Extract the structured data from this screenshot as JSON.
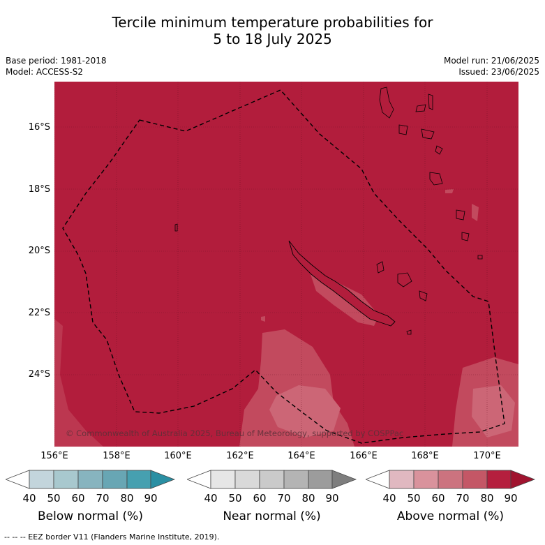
{
  "title_line1": "Tercile minimum temperature probabilities for",
  "title_line2": "5 to 18 July 2025",
  "base_period": "Base period: 1981-2018",
  "model": "Model: ACCESS-S2",
  "model_run": "Model run: 21/06/2025",
  "issued": "Issued: 23/06/2025",
  "copyright": "© Commonwealth of Australia 2025, Bureau of Meteorology, supported by COSPPac",
  "lat_labels": [
    "16°S",
    "18°S",
    "20°S",
    "22°S",
    "24°S"
  ],
  "lon_labels": [
    "156°E",
    "158°E",
    "160°E",
    "162°E",
    "164°E",
    "166°E",
    "168°E",
    "170°E"
  ],
  "legends": {
    "below": {
      "label": "Below normal (%)",
      "ticks": [
        "40",
        "50",
        "60",
        "70",
        "80",
        "90"
      ],
      "colors": [
        "#ffffff",
        "#c3d5dc",
        "#a8c8ce",
        "#87b4bf",
        "#68a6b4",
        "#46a0b0",
        "#2a8fa3"
      ]
    },
    "near": {
      "label": "Near normal (%)",
      "ticks": [
        "40",
        "50",
        "60",
        "70",
        "80",
        "90"
      ],
      "colors": [
        "#ffffff",
        "#e6e6e6",
        "#d9d9d9",
        "#cacaca",
        "#b4b4b4",
        "#9c9c9c",
        "#7e7e7e"
      ]
    },
    "above": {
      "label": "Above normal (%)",
      "ticks": [
        "40",
        "50",
        "60",
        "70",
        "80",
        "90"
      ],
      "colors": [
        "#ffffff",
        "#e0b8c0",
        "#d9929c",
        "#cc737f",
        "#c45766",
        "#b51f3e",
        "#a0142f"
      ]
    }
  },
  "footer": "--  --  -- EEZ border V11 (Flanders Marine Institute, 2019).",
  "colors": {
    "map_base": "#b21d3c",
    "contour_mid": "#c24a5e",
    "contour_light": "#cf6f7d"
  }
}
